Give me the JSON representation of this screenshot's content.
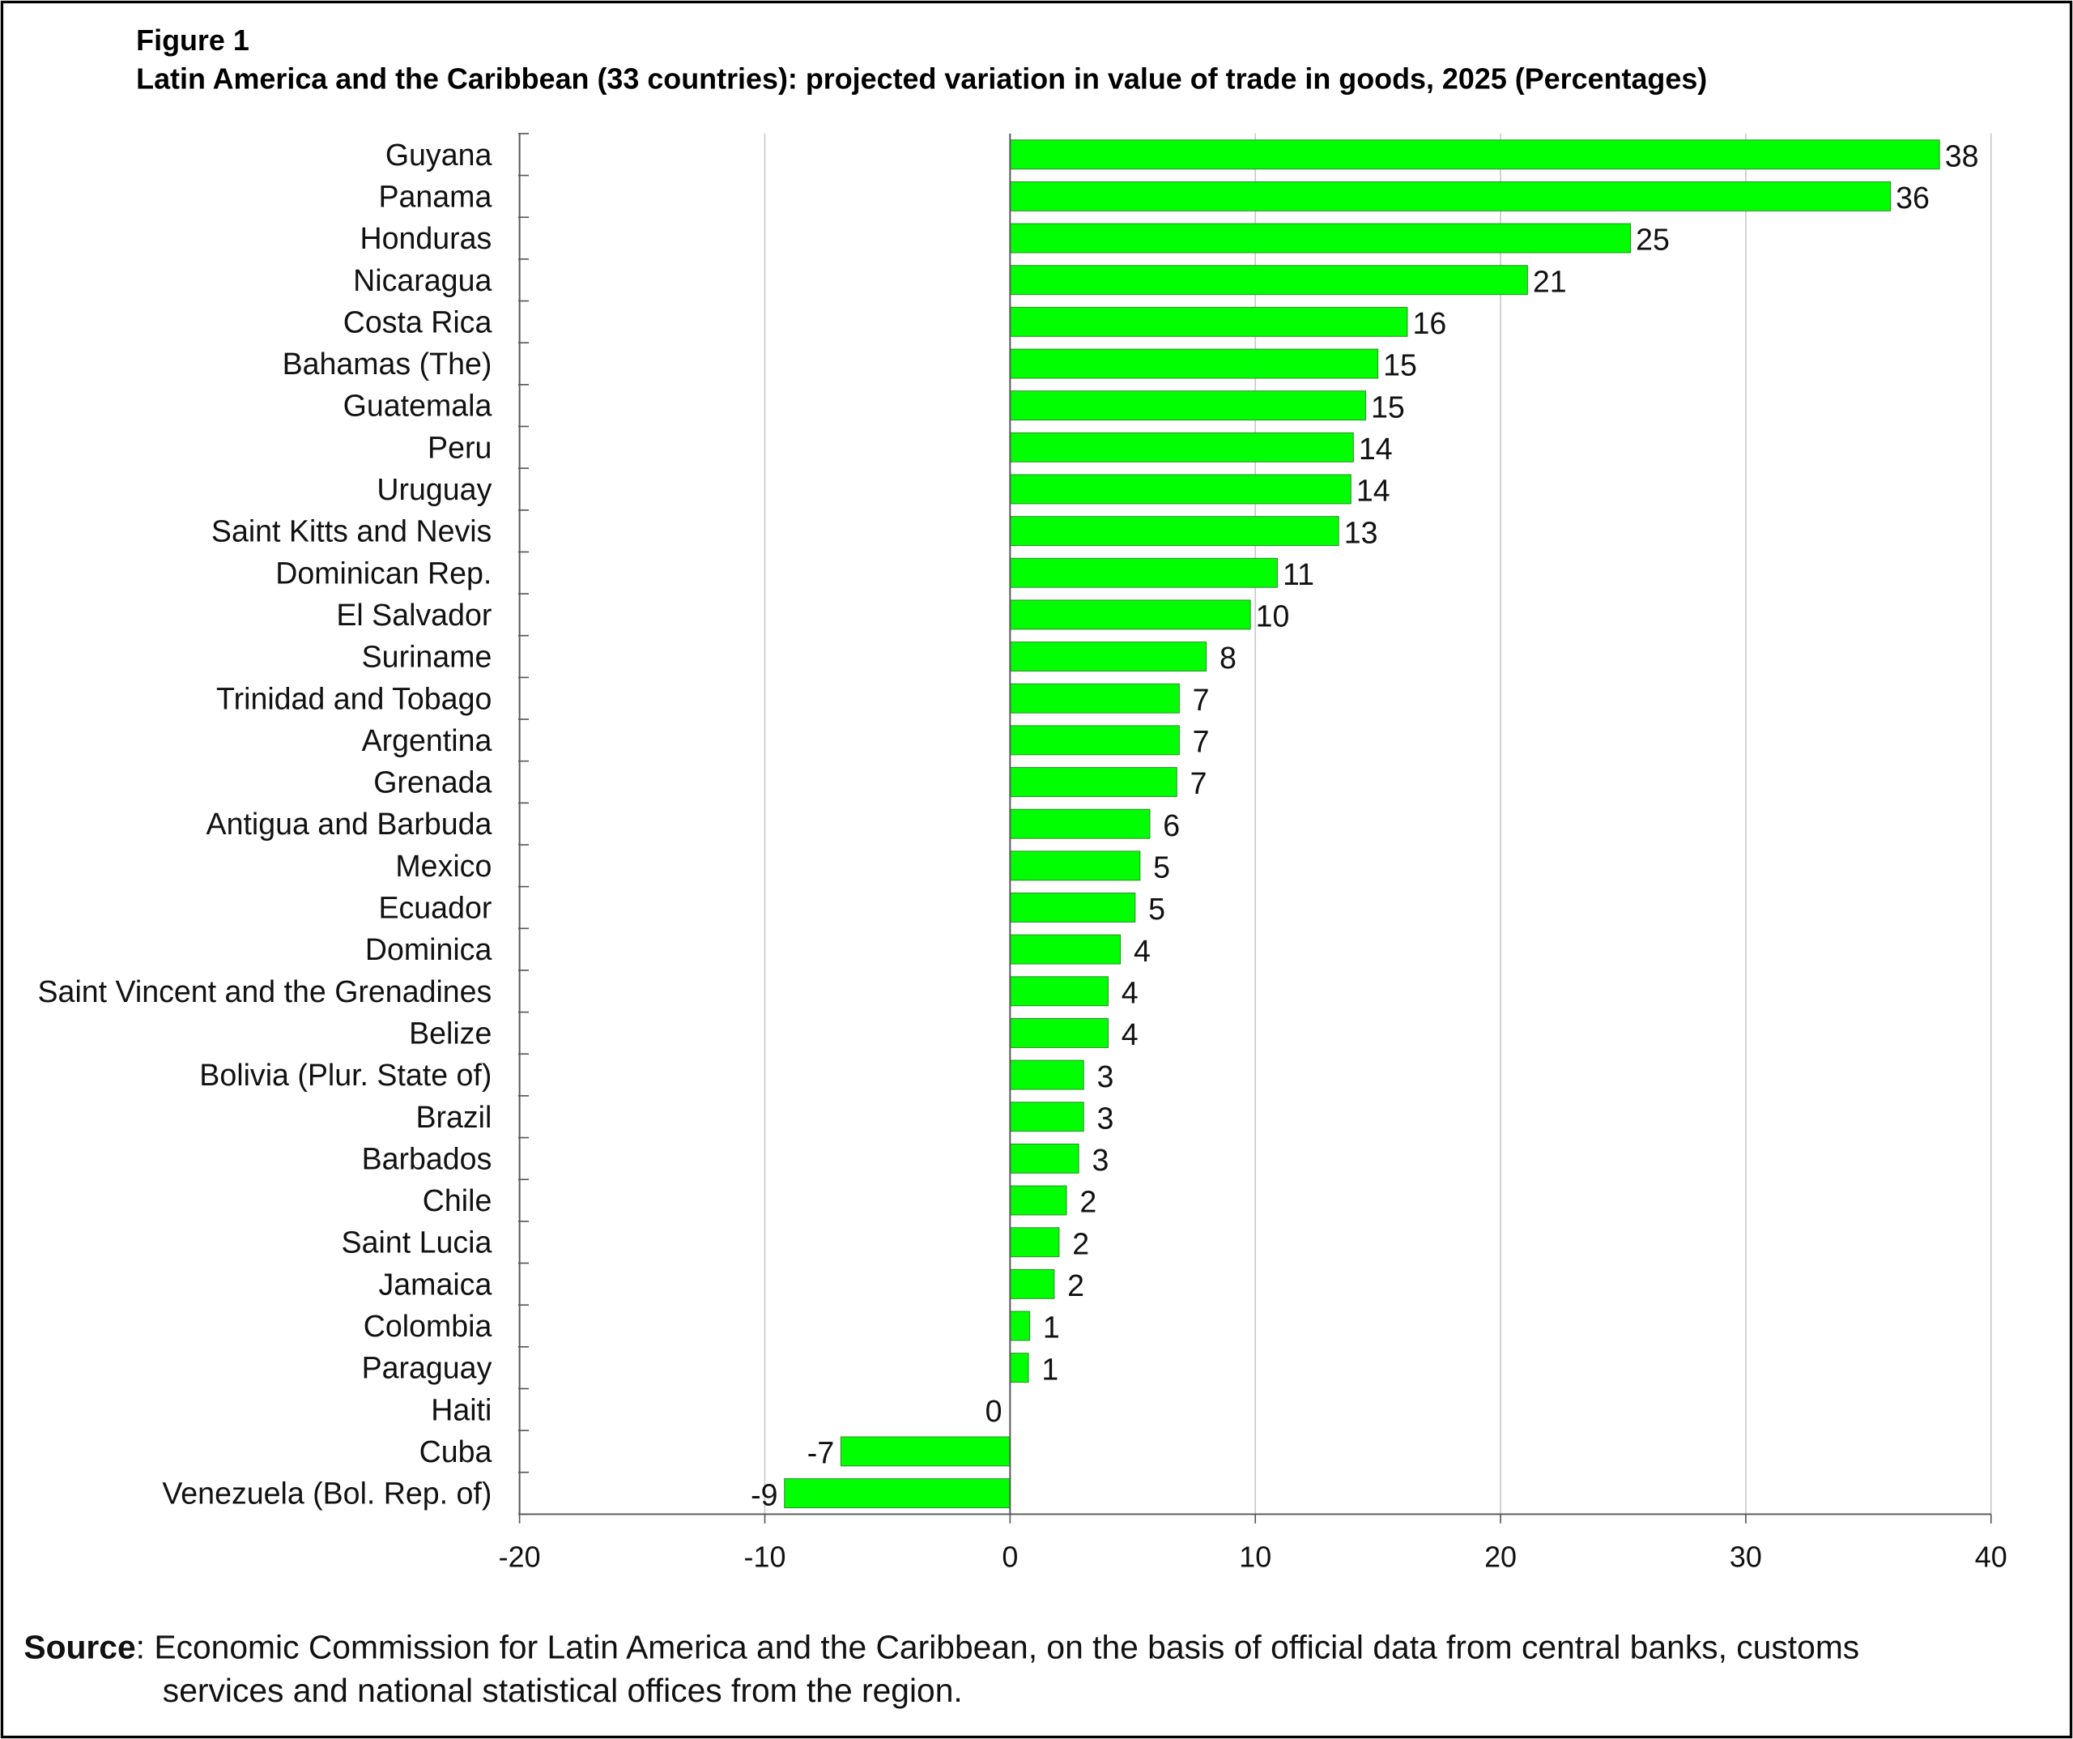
{
  "figure_label": "Figure 1",
  "source_label": "Source",
  "source_text_line1": ": Economic Commission for Latin America and the Caribbean, on the basis of official data from central banks, customs",
  "source_text_line2": "services and national statistical offices from the region.",
  "colors": {
    "bar": "#00FF00",
    "grid": "#c8c8c8",
    "axis": "#555555"
  },
  "chart_data": {
    "type": "bar",
    "orientation": "horizontal",
    "title": "Latin America and the Caribbean (33 countries): projected variation in value of trade in goods, 2025 (Percentages)",
    "xlabel": "",
    "ylabel": "",
    "xlim": [
      -20,
      40
    ],
    "xticks": [
      -20,
      -10,
      0,
      10,
      20,
      30,
      40
    ],
    "grid": true,
    "categories": [
      "Guyana",
      "Panama",
      "Honduras",
      "Nicaragua",
      "Costa Rica",
      "Bahamas (The)",
      "Guatemala",
      "Peru",
      "Uruguay",
      "Saint Kitts and Nevis",
      "Dominican Rep.",
      "El Salvador",
      "Suriname",
      "Trinidad and Tobago",
      "Argentina",
      "Grenada",
      "Antigua and Barbuda",
      "Mexico",
      "Ecuador",
      "Dominica",
      "Saint Vincent and the Grenadines",
      "Belize",
      "Bolivia (Plur. State of)",
      "Brazil",
      "Barbados",
      "Chile",
      "Saint Lucia",
      "Jamaica",
      "Colombia",
      "Paraguay",
      "Haiti",
      "Cuba",
      "Venezuela (Bol. Rep. of)"
    ],
    "values": [
      37.9,
      35.9,
      25.3,
      21.1,
      16.2,
      15.0,
      14.5,
      14.0,
      13.9,
      13.4,
      10.9,
      9.8,
      8.0,
      6.9,
      6.9,
      6.8,
      5.7,
      5.3,
      5.1,
      4.5,
      4.0,
      4.0,
      3.0,
      3.0,
      2.8,
      2.3,
      2.0,
      1.8,
      0.8,
      0.75,
      0,
      -6.9,
      -9.2
    ],
    "data_labels": [
      "38",
      "36",
      "25",
      "21",
      "16",
      "15",
      "15",
      "14",
      "14",
      "13",
      "11",
      "10",
      "8",
      "7",
      "7",
      "7",
      "6",
      "5",
      "5",
      "4",
      "4",
      "4",
      "3",
      "3",
      "3",
      "2",
      "2",
      "2",
      "1",
      "1",
      "0",
      "-7",
      "-9"
    ]
  }
}
